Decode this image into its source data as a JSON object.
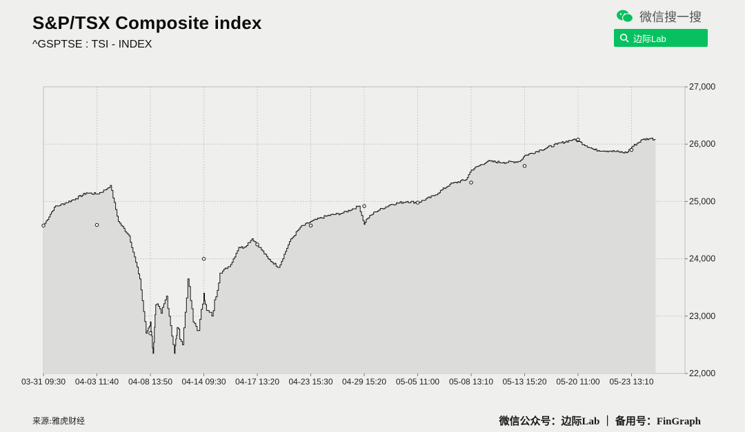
{
  "header": {
    "title": "S&P/TSX Composite index",
    "subtitle": "^GSPTSE : TSI - INDEX"
  },
  "watermark": {
    "brand_text": "微信搜一搜",
    "search_text": "边际Lab",
    "icon": "wechat-icon",
    "search_icon": "search-icon",
    "accent": "#07c160"
  },
  "footer": {
    "source": "来源:雅虎财经",
    "credit": "微信公众号：边际Lab ｜ 备用号：FinGraph"
  },
  "chart_data": {
    "type": "line",
    "style": "area",
    "title": "S&P/TSX Composite index",
    "subtitle": "^GSPTSE : TSI - INDEX",
    "xlabel": "",
    "ylabel": "",
    "ylim": [
      22000,
      27000
    ],
    "yticks": [
      22000,
      23000,
      24000,
      25000,
      26000,
      27000
    ],
    "ytick_labels": [
      "22,000",
      "23,000",
      "24,000",
      "25,000",
      "26,000",
      "27,000"
    ],
    "y_axis_position": "right",
    "xtick_labels": [
      "03-31 09:30",
      "04-03 11:40",
      "04-08 13:50",
      "04-14 09:30",
      "04-17 13:20",
      "04-23 15:30",
      "04-29 15:20",
      "05-05 11:00",
      "05-08 13:10",
      "05-13 15:20",
      "05-20 11:00",
      "05-23 13:10"
    ],
    "grid": true,
    "colors": {
      "line": "#111111",
      "fill": "#dcdcda",
      "grid": "#c8c8c8",
      "background": "#efefed"
    },
    "series": [
      {
        "x": [
          0,
          0.2,
          0.4,
          0.6,
          0.8,
          1.0,
          1.15,
          1.25,
          1.4,
          1.6,
          1.8,
          1.92,
          2.0,
          2.05,
          2.1,
          2.2,
          2.3,
          2.45,
          2.5,
          2.6,
          2.7,
          2.8,
          2.9,
          3.0,
          3.05,
          3.15,
          3.3,
          3.5,
          3.65,
          3.75,
          3.9,
          4.0,
          4.2,
          4.4,
          4.6,
          4.8,
          5.0,
          5.3,
          5.6,
          5.9,
          6.0,
          6.05,
          6.2,
          6.5,
          6.8,
          7.0,
          7.3,
          7.6,
          7.9,
          8.0,
          8.3,
          8.6,
          8.9,
          9.0,
          9.3,
          9.6,
          9.9,
          10.0,
          10.3,
          10.6,
          10.9,
          11.0,
          11.2,
          11.35,
          11.45
        ],
        "y": [
          24580,
          24900,
          24970,
          25050,
          25150,
          25130,
          25200,
          25280,
          24650,
          24400,
          23650,
          22700,
          22900,
          22350,
          23200,
          23050,
          23350,
          22350,
          22800,
          22500,
          23650,
          22900,
          22750,
          23400,
          23100,
          23000,
          23750,
          23900,
          24200,
          24200,
          24350,
          24250,
          24000,
          23850,
          24300,
          24550,
          24650,
          24750,
          24800,
          24920,
          24600,
          24700,
          24820,
          24950,
          25000,
          24980,
          25100,
          25300,
          25380,
          25550,
          25700,
          25680,
          25700,
          25800,
          25900,
          26000,
          26080,
          26050,
          25900,
          25880,
          25850,
          25950,
          26080,
          26100,
          26080
        ]
      }
    ],
    "markers": [
      [
        0,
        24580
      ],
      [
        1.0,
        24590
      ],
      [
        2.0,
        22700
      ],
      [
        3.0,
        24000
      ],
      [
        4.0,
        24250
      ],
      [
        5.0,
        24580
      ],
      [
        6.0,
        24920
      ],
      [
        7.0,
        24980
      ],
      [
        8.0,
        25330
      ],
      [
        9.0,
        25620
      ],
      [
        10.0,
        26080
      ],
      [
        11.0,
        25900
      ]
    ]
  }
}
